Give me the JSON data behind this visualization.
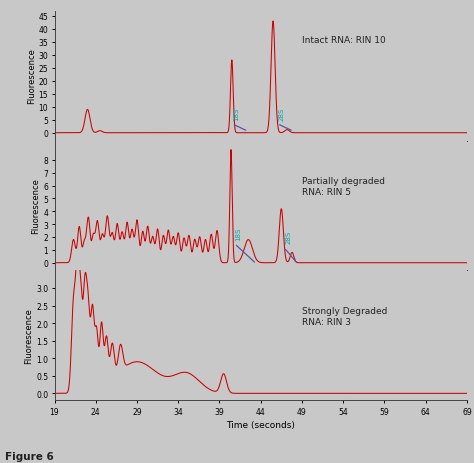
{
  "bg_color": "#c8c8c8",
  "line_color": "#cc0000",
  "marker_line_color": "#5555aa",
  "label_color": "#00aaaa",
  "text_color": "#222222",
  "xlim": [
    19,
    69
  ],
  "xticks": [
    19,
    24,
    29,
    34,
    39,
    44,
    49,
    54,
    59,
    64,
    69
  ],
  "xlabel": "Time (seconds)",
  "ylabel": "Fluorescence",
  "subplot1": {
    "yticks": [
      0,
      5,
      10,
      15,
      20,
      25,
      30,
      35,
      40,
      45
    ],
    "ylim": [
      -3,
      47
    ],
    "label": "Intact RNA: RIN 10"
  },
  "subplot2": {
    "yticks": [
      0,
      1,
      2,
      3,
      4,
      5,
      6,
      7,
      8
    ],
    "ylim": [
      -0.6,
      9.5
    ],
    "label": "Partially degraded\nRNA: RIN 5"
  },
  "subplot3": {
    "yticks": [
      0.0,
      0.5,
      1.0,
      1.5,
      2.0,
      2.5,
      3.0
    ],
    "ylim": [
      -0.2,
      3.5
    ],
    "label": "Strongly Degraded\nRNA: RIN 3"
  },
  "figure_label": "Figure 6"
}
